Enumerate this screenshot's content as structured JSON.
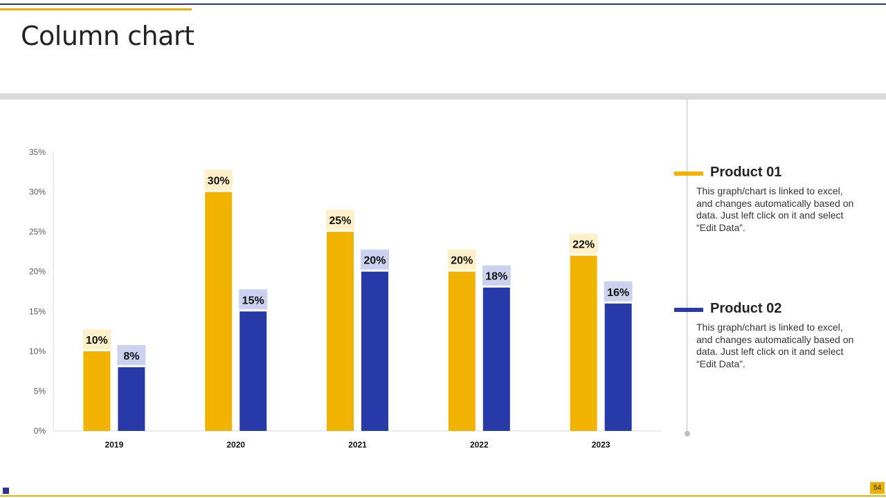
{
  "page": {
    "title": "Column chart",
    "page_number": "54"
  },
  "colors": {
    "product_01": "#F2B300",
    "product_02": "#283AA8",
    "label_bg_product_01": "#FFF0C9",
    "label_bg_product_02": "#CBD1EE",
    "accent_gold": "#E6B100",
    "accent_blue": "#283593"
  },
  "legend": [
    {
      "title": "Product 01",
      "description": "This graph/chart is linked to excel, and changes automatically based on data. Just left click on it and select “Edit Data”."
    },
    {
      "title": "Product 02",
      "description": "This graph/chart is linked to excel, and changes automatically based on data. Just left click on it and select “Edit Data”."
    }
  ],
  "chart_data": {
    "type": "bar",
    "categories": [
      "2019",
      "2020",
      "2021",
      "2022",
      "2023"
    ],
    "series": [
      {
        "name": "Product 01",
        "values": [
          10,
          30,
          25,
          20,
          22
        ],
        "labels": [
          "10%",
          "30%",
          "25%",
          "20%",
          "22%"
        ]
      },
      {
        "name": "Product 02",
        "values": [
          8,
          15,
          20,
          18,
          16
        ],
        "labels": [
          "8%",
          "15%",
          "20%",
          "18%",
          "16%"
        ]
      }
    ],
    "y_ticks": [
      "0%",
      "5%",
      "10%",
      "15%",
      "20%",
      "25%",
      "30%",
      "35%"
    ],
    "ylim": [
      0,
      35
    ],
    "grid": false,
    "legend_position": "right",
    "title": "",
    "xlabel": "",
    "ylabel": ""
  }
}
